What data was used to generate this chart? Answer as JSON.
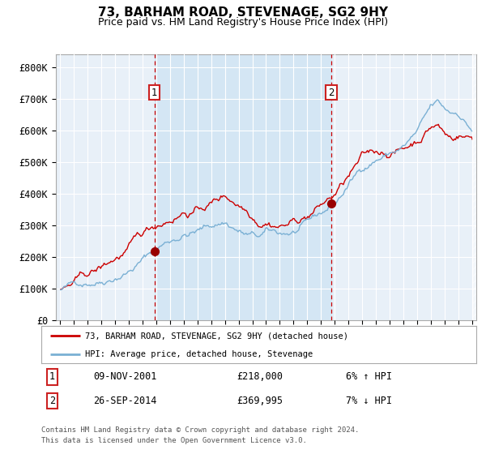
{
  "title": "73, BARHAM ROAD, STEVENAGE, SG2 9HY",
  "subtitle": "Price paid vs. HM Land Registry's House Price Index (HPI)",
  "ylabel_ticks": [
    "£0",
    "£100K",
    "£200K",
    "£300K",
    "£400K",
    "£500K",
    "£600K",
    "£700K",
    "£800K"
  ],
  "ytick_values": [
    0,
    100000,
    200000,
    300000,
    400000,
    500000,
    600000,
    700000,
    800000
  ],
  "ylim": [
    0,
    840000
  ],
  "t1_year": 2001.87,
  "t2_year": 2014.74,
  "t1_price": 218000,
  "t2_price": 369995,
  "legend_line1": "73, BARHAM ROAD, STEVENAGE, SG2 9HY (detached house)",
  "legend_line2": "HPI: Average price, detached house, Stevenage",
  "table_row1": [
    "1",
    "09-NOV-2001",
    "£218,000",
    "6% ↑ HPI"
  ],
  "table_row2": [
    "2",
    "26-SEP-2014",
    "£369,995",
    "7% ↓ HPI"
  ],
  "footnote1": "Contains HM Land Registry data © Crown copyright and database right 2024.",
  "footnote2": "This data is licensed under the Open Government Licence v3.0.",
  "line_color_red": "#cc0000",
  "line_color_blue": "#7ab0d4",
  "fill_color": "#d8e8f5",
  "dashed_color": "#cc0000",
  "plot_bg": "#e8f0f8",
  "grid_color": "#ffffff",
  "box_color": "#cc2222",
  "xlim_left": 1994.7,
  "xlim_right": 2025.3
}
